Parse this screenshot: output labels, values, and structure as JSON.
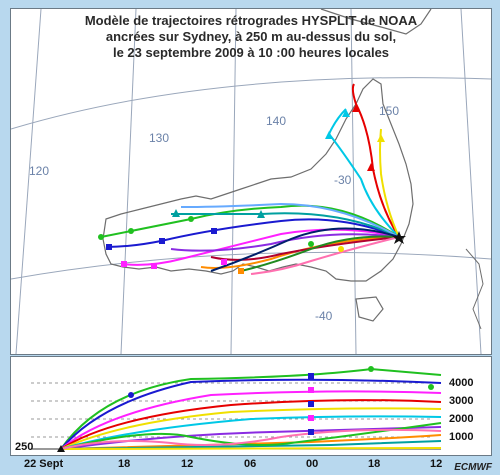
{
  "title": {
    "line1": "Modèle de trajectoires rétrogrades HYSPLIT de NOAA",
    "line2": "ancrées sur Sydney, à 250 m au-dessus du sol,",
    "line3": "le 23 septembre 2009 à 10 :00 heures locales"
  },
  "map": {
    "longitude_labels": [
      "120",
      "130",
      "140",
      "150"
    ],
    "latitude_labels": [
      "-30",
      "-40"
    ],
    "source_marker": "star-icon",
    "colors": {
      "coast": "#6e6e6e",
      "grid": "#9aa7bb",
      "trajectory_red": "#e60000",
      "trajectory_cyan": "#00c8e6",
      "trajectory_yellow": "#f0e000",
      "trajectory_green": "#20c020",
      "trajectory_blue": "#1a1ad0",
      "trajectory_magenta": "#ff20ff"
    }
  },
  "profile": {
    "start_label": "250",
    "height_labels": [
      "4000",
      "3000",
      "2000",
      "1000"
    ],
    "time_labels": [
      "22 Sept",
      "18",
      "12",
      "06",
      "00",
      "18",
      "12"
    ]
  },
  "credit": "ECMWF"
}
